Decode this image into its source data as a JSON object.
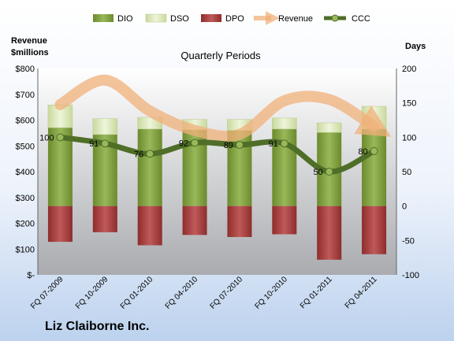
{
  "chart_data": {
    "type": "bar",
    "title": "Quarterly Periods",
    "caption": "Liz Claiborne Inc.",
    "left_axis_label_line1": "Revenue",
    "left_axis_label_line2": "$millions",
    "right_axis_label": "Days",
    "left_ylim": [
      0,
      800
    ],
    "right_ylim": [
      -100,
      200
    ],
    "left_ticks": [
      "$-",
      "$100",
      "$200",
      "$300",
      "$400",
      "$500",
      "$600",
      "$700",
      "$800"
    ],
    "right_ticks": [
      "-100",
      "-50",
      "0",
      "50",
      "100",
      "150",
      "200"
    ],
    "categories": [
      "FQ 07-2009",
      "FQ 10-2009",
      "FQ 01-2010",
      "FQ 04-2010",
      "FQ 07-2010",
      "FQ 10-2010",
      "FQ 01-2011",
      "FQ 04-2011"
    ],
    "legend_position": "top",
    "grid": false,
    "series": [
      {
        "name": "DIO",
        "kind": "bar",
        "axis": "right",
        "color": "#7a9a3a",
        "values": [
          114,
          104,
          112,
          111,
          110,
          112,
          107,
          112
        ]
      },
      {
        "name": "DSO",
        "kind": "bar",
        "axis": "right",
        "color": "#e4eec9",
        "values": [
          33,
          23,
          17,
          15,
          16,
          16,
          14,
          33
        ]
      },
      {
        "name": "DPO",
        "kind": "bar",
        "axis": "right",
        "color": "#a33b3b",
        "values": [
          -52,
          -38,
          -57,
          -42,
          -45,
          -41,
          -78,
          -70
        ]
      },
      {
        "name": "Revenue",
        "kind": "line",
        "axis": "left",
        "color": "#f0b07a",
        "values": [
          660,
          755,
          635,
          560,
          545,
          675,
          680,
          575
        ]
      },
      {
        "name": "CCC",
        "kind": "line",
        "axis": "right",
        "color": "#4f6e28",
        "values": [
          100,
          91,
          76,
          92,
          89,
          91,
          50,
          80
        ]
      }
    ],
    "ccc_labels": [
      "100",
      "91",
      "76",
      "92",
      "89",
      "91",
      "50",
      "80"
    ]
  }
}
